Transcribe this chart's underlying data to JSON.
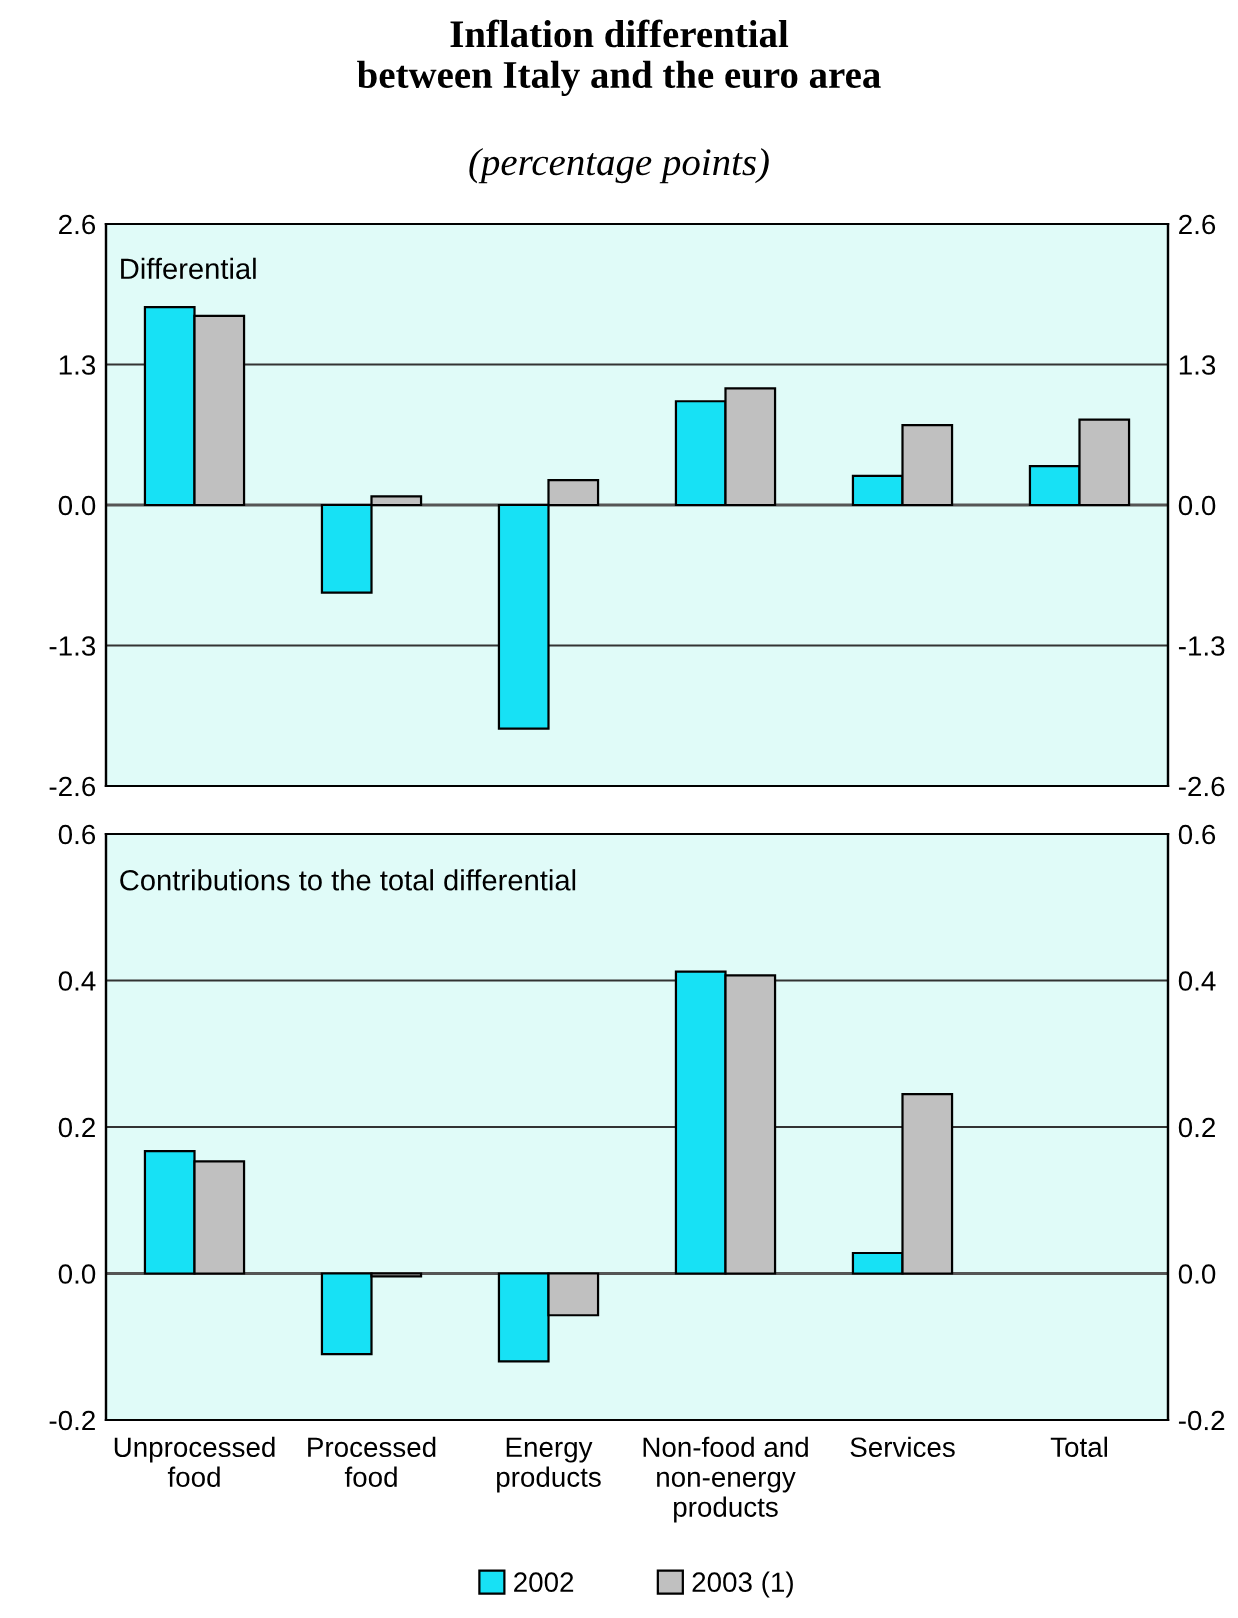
{
  "chart_data": [
    {
      "type": "bar",
      "title": "Inflation differential\nbetween Italy and the euro area",
      "subtitle": "(percentage points)",
      "annotations": [
        "Differential"
      ],
      "categories": [
        null,
        null,
        null,
        null,
        null,
        null
      ],
      "series": [
        {
          "color": "#17e1f5",
          "values": [
            1.83,
            -0.81,
            -2.07,
            0.96,
            0.27,
            0.36
          ]
        },
        {
          "color": "#c0c0c0",
          "values": [
            1.75,
            0.08,
            0.23,
            1.08,
            0.74,
            0.79
          ]
        }
      ],
      "ylim": [
        -2.6,
        2.6
      ],
      "yticks": [
        -2.6,
        -1.3,
        {
          "value": 0,
          "label": "0.0"
        },
        1.3,
        2.6
      ],
      "y2lim": [
        -2.6,
        2.6
      ],
      "y2ticks": [
        -2.6,
        -1.3,
        {
          "value": 0,
          "label": "0.0"
        },
        1.3,
        2.6
      ],
      "grid": "y",
      "tick_labels": "y",
      "legend": false
    },
    {
      "type": "bar",
      "annotations": [
        "Contributions to the total differential"
      ],
      "categories": [
        "Unprocessed\nfood",
        "Processed\nfood",
        "Energy\nproducts",
        "Non-food and\nnon-energy\nproducts",
        "Services",
        "Total"
      ],
      "series": [
        {
          "name": "2002",
          "color": "#17e1f5",
          "values": [
            0.167,
            -0.11,
            -0.12,
            0.412,
            0.028,
            null
          ]
        },
        {
          "name": "2003 (1)",
          "color": "#c0c0c0",
          "values": [
            0.153,
            -0.004,
            -0.057,
            0.407,
            0.245,
            null
          ]
        }
      ],
      "ylim": [
        -0.2,
        0.6
      ],
      "yticks": [
        -0.2,
        {
          "value": 0,
          "label": "0.0"
        },
        0.2,
        0.4,
        0.6
      ],
      "y2lim": [
        -0.2,
        0.6
      ],
      "y2ticks": [
        -0.2,
        {
          "value": 0,
          "label": "0.0"
        },
        0.2,
        0.4,
        0.6
      ],
      "grid": "y",
      "legend": "bottom"
    }
  ]
}
